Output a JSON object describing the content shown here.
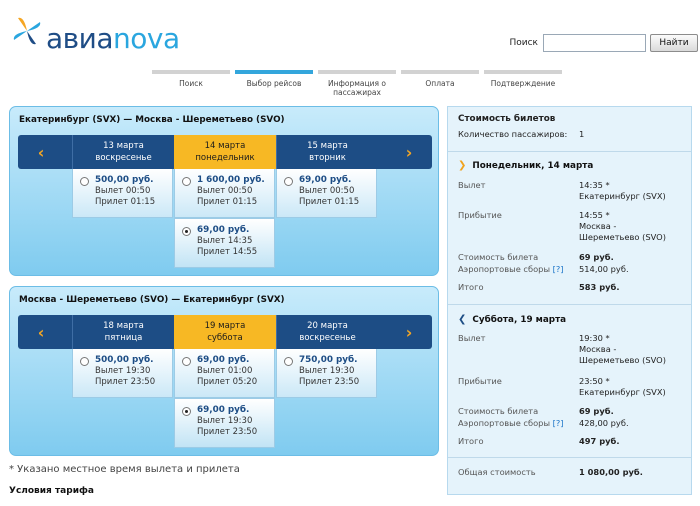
{
  "brand": {
    "part1": "авиа",
    "part2": "nova"
  },
  "search": {
    "label": "Поиск",
    "value": "",
    "button": "Найти"
  },
  "steps": [
    "Поиск",
    "Выбор рейсов",
    "Информация о пассажирах",
    "Оплата",
    "Подтверждение"
  ],
  "active_step": 1,
  "outbound": {
    "title": "Екатеринбург (SVX) — Москва - Шереметьево (SVO)",
    "days": [
      {
        "date": "13 марта",
        "weekday": "воскресенье"
      },
      {
        "date": "14 марта",
        "weekday": "понедельник"
      },
      {
        "date": "15 марта",
        "weekday": "вторник"
      }
    ],
    "fares": [
      {
        "price": "500,00 руб.",
        "dep": "Вылет 00:50",
        "arr": "Прилет 01:15"
      },
      {
        "price": "1 600,00 руб.",
        "dep": "Вылет 00:50",
        "arr": "Прилет 01:15"
      },
      {
        "price": "69,00 руб.",
        "dep": "Вылет 00:50",
        "arr": "Прилет 01:15"
      },
      {
        "price": "69,00 руб.",
        "dep": "Вылет 14:35",
        "arr": "Прилет 14:55"
      }
    ]
  },
  "inbound": {
    "title": "Москва - Шереметьево (SVO) — Екатеринбург (SVX)",
    "days": [
      {
        "date": "18 марта",
        "weekday": "пятница"
      },
      {
        "date": "19 марта",
        "weekday": "суббота"
      },
      {
        "date": "20 марта",
        "weekday": "воскресенье"
      }
    ],
    "fares": [
      {
        "price": "500,00 руб.",
        "dep": "Вылет 19:30",
        "arr": "Прилет 23:50"
      },
      {
        "price": "69,00 руб.",
        "dep": "Вылет 01:00",
        "arr": "Прилет 05:20"
      },
      {
        "price": "750,00 руб.",
        "dep": "Вылет 19:30",
        "arr": "Прилет 23:50"
      },
      {
        "price": "69,00 руб.",
        "dep": "Вылет 19:30",
        "arr": "Прилет 23:50"
      }
    ]
  },
  "nav": {
    "prev": "‹",
    "next": "›"
  },
  "footnote": "* Указано местное время вылета и прилета",
  "terms": "Условия тарифа",
  "summary": {
    "title": "Стоимость билетов",
    "pax_label": "Количество пассажиров:",
    "pax_value": "1",
    "leg1": {
      "head": "Понедельник, 14 марта",
      "dep_label": "Вылет",
      "dep_time": "14:35 *",
      "dep_city": "Екатеринбург (SVX)",
      "arr_label": "Прибытие",
      "arr_time": "14:55 *",
      "arr_city1": "Москва -",
      "arr_city2": "Шереметьево (SVO)",
      "ticket_label": "Стоимость билета",
      "ticket_value": "69 руб.",
      "fees_label": "Аэропортовые сборы",
      "fees_link": "[?]",
      "fees_value": "514,00 руб.",
      "total_label": "Итого",
      "total_value": "583 руб."
    },
    "leg2": {
      "head": "Суббота, 19 марта",
      "dep_label": "Вылет",
      "dep_time": "19:30 *",
      "dep_city1": "Москва -",
      "dep_city2": "Шереметьево (SVO)",
      "arr_label": "Прибытие",
      "arr_time": "23:50 *",
      "arr_city": "Екатеринбург (SVX)",
      "ticket_label": "Стоимость билета",
      "ticket_value": "69 руб.",
      "fees_label": "Аэропортовые сборы",
      "fees_link": "[?]",
      "fees_value": "428,00 руб.",
      "total_label": "Итого",
      "total_value": "497 руб."
    },
    "grand_label": "Общая стоимость",
    "grand_value": "1 080,00 руб."
  }
}
